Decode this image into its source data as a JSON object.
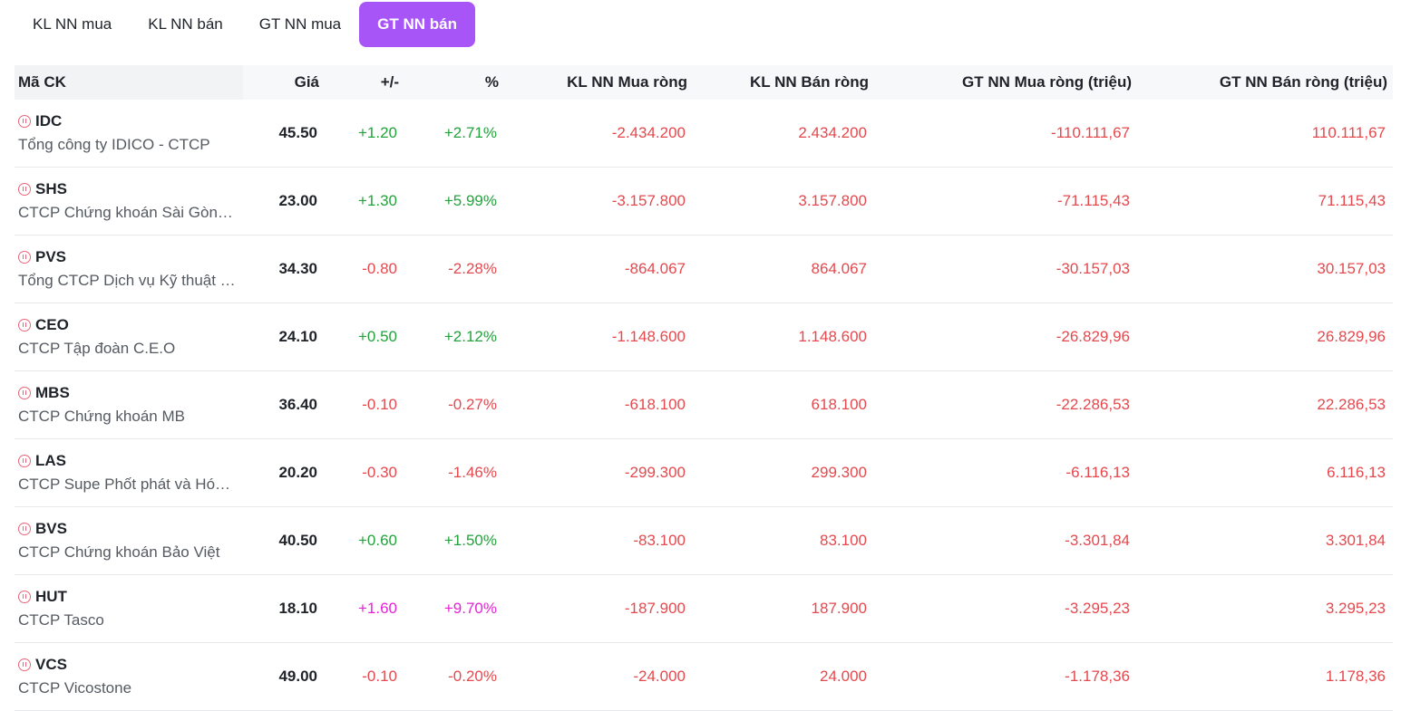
{
  "tabs": [
    {
      "label": "KL NN mua",
      "active": false
    },
    {
      "label": "KL NN bán",
      "active": false
    },
    {
      "label": "GT NN mua",
      "active": false
    },
    {
      "label": "GT NN bán",
      "active": true
    }
  ],
  "columns": [
    "Mã CK",
    "Giá",
    "+/-",
    "%",
    "KL NN Mua ròng",
    "KL NN Bán ròng",
    "GT NN Mua ròng (triệu)",
    "GT NN Bán ròng (triệu)"
  ],
  "icon": "pause-circle-icon",
  "colors": {
    "accent": "#a855f7",
    "up": "#22a33b",
    "down": "#e5484d",
    "ceiling": "#e622d6"
  },
  "rows": [
    {
      "symbol": "IDC",
      "name": "Tổng công ty IDICO - CTCP",
      "price": "45.50",
      "change": "+1.20",
      "pct": "+2.71%",
      "trend": "up",
      "kl_mua": "-2.434.200",
      "kl_ban": "2.434.200",
      "gt_mua": "-110.111,67",
      "gt_ban": "110.111,67"
    },
    {
      "symbol": "SHS",
      "name": "CTCP Chứng khoán Sài Gòn - Hà Nội",
      "price": "23.00",
      "change": "+1.30",
      "pct": "+5.99%",
      "trend": "up",
      "kl_mua": "-3.157.800",
      "kl_ban": "3.157.800",
      "gt_mua": "-71.115,43",
      "gt_ban": "71.115,43"
    },
    {
      "symbol": "PVS",
      "name": "Tổng CTCP Dịch vụ Kỹ thuật Dầu khí Việt Nam",
      "price": "34.30",
      "change": "-0.80",
      "pct": "-2.28%",
      "trend": "down",
      "kl_mua": "-864.067",
      "kl_ban": "864.067",
      "gt_mua": "-30.157,03",
      "gt_ban": "30.157,03"
    },
    {
      "symbol": "CEO",
      "name": "CTCP Tập đoàn C.E.O",
      "price": "24.10",
      "change": "+0.50",
      "pct": "+2.12%",
      "trend": "up",
      "kl_mua": "-1.148.600",
      "kl_ban": "1.148.600",
      "gt_mua": "-26.829,96",
      "gt_ban": "26.829,96"
    },
    {
      "symbol": "MBS",
      "name": "CTCP Chứng khoán MB",
      "price": "36.40",
      "change": "-0.10",
      "pct": "-0.27%",
      "trend": "down",
      "kl_mua": "-618.100",
      "kl_ban": "618.100",
      "gt_mua": "-22.286,53",
      "gt_ban": "22.286,53"
    },
    {
      "symbol": "LAS",
      "name": "CTCP Supe Phốt phát và Hóa chất Lâm Thao",
      "price": "20.20",
      "change": "-0.30",
      "pct": "-1.46%",
      "trend": "down",
      "kl_mua": "-299.300",
      "kl_ban": "299.300",
      "gt_mua": "-6.116,13",
      "gt_ban": "6.116,13"
    },
    {
      "symbol": "BVS",
      "name": "CTCP Chứng khoán Bảo Việt",
      "price": "40.50",
      "change": "+0.60",
      "pct": "+1.50%",
      "trend": "up",
      "kl_mua": "-83.100",
      "kl_ban": "83.100",
      "gt_mua": "-3.301,84",
      "gt_ban": "3.301,84"
    },
    {
      "symbol": "HUT",
      "name": "CTCP Tasco",
      "price": "18.10",
      "change": "+1.60",
      "pct": "+9.70%",
      "trend": "ceil",
      "kl_mua": "-187.900",
      "kl_ban": "187.900",
      "gt_mua": "-3.295,23",
      "gt_ban": "3.295,23"
    },
    {
      "symbol": "VCS",
      "name": "CTCP Vicostone",
      "price": "49.00",
      "change": "-0.10",
      "pct": "-0.20%",
      "trend": "down",
      "kl_mua": "-24.000",
      "kl_ban": "24.000",
      "gt_mua": "-1.178,36",
      "gt_ban": "1.178,36"
    }
  ]
}
